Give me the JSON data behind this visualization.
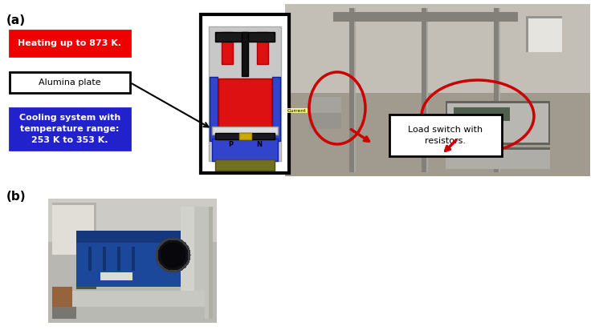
{
  "fig_width": 7.46,
  "fig_height": 4.12,
  "dpi": 100,
  "bg_color": "#ffffff",
  "label_a": "(a)",
  "label_b": "(b)",
  "heating_text": "Heating up to 873 K.",
  "heating_bg": "#ee0000",
  "heating_fg": "#ffffff",
  "alumina_text": "Alumina plate",
  "alumina_bg": "#ffffff",
  "alumina_fg": "#000000",
  "cooling_text": "Cooling system with\ntemperature range:\n253 K to 353 K.",
  "cooling_bg": "#2222cc",
  "cooling_fg": "#ffffff",
  "load_switch_text": "Load switch with\nresistors.",
  "arrow_color": "#cc0000",
  "circle_color": "#cc0000",
  "current_text": "Current"
}
